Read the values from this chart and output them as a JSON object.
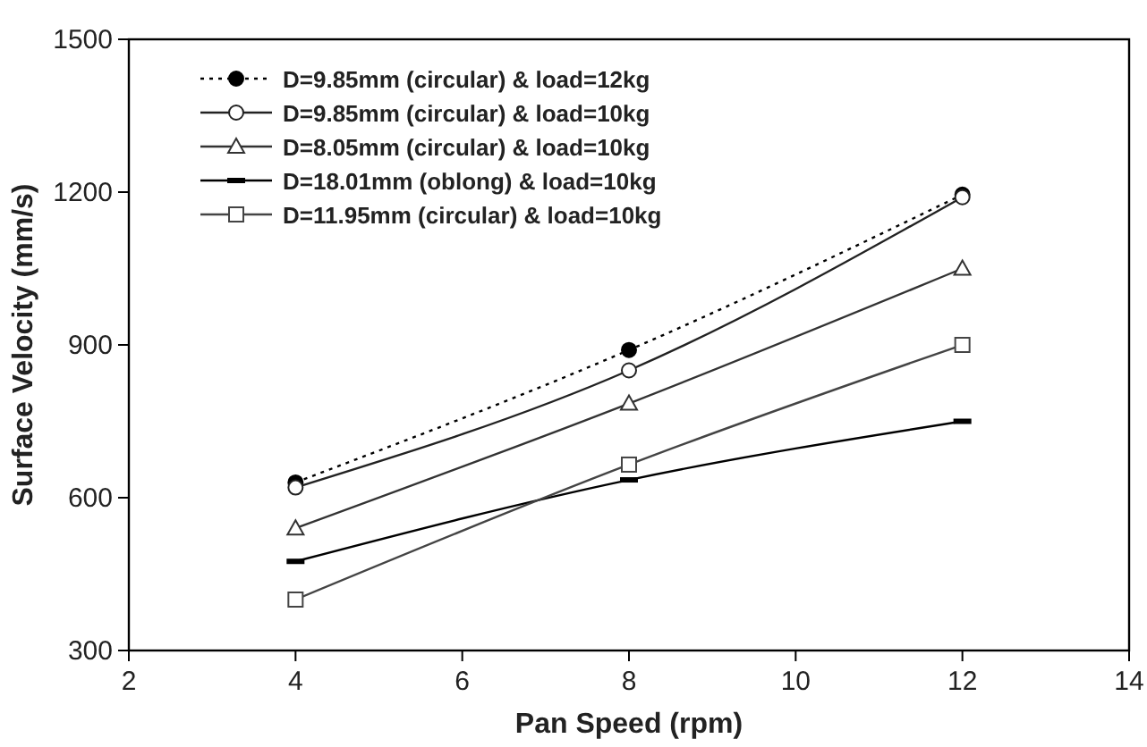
{
  "chart_data": {
    "type": "line",
    "xlabel": "Pan Speed (rpm)",
    "ylabel": "Surface Velocity (mm/s)",
    "x": [
      4,
      8,
      12
    ],
    "xlim": [
      2,
      14
    ],
    "xticks": [
      2,
      4,
      6,
      8,
      10,
      12,
      14
    ],
    "ylim": [
      300,
      1500
    ],
    "yticks": [
      300,
      600,
      900,
      1200,
      1500
    ],
    "grid": false,
    "legend": "top left",
    "series": [
      {
        "name": "D=9.85mm (circular) & load=12kg",
        "color": "#000000",
        "values": [
          630,
          890,
          1195
        ],
        "marker": "circle",
        "line_style": "dotted"
      },
      {
        "name": "D=9.85mm (circular) & load=10kg",
        "color": "#222222",
        "values": [
          620,
          850,
          1190
        ],
        "marker": "circle",
        "line_style": "solid"
      },
      {
        "name": "D=8.05mm (circular) & load=10kg",
        "color": "#333333",
        "values": [
          540,
          785,
          1050
        ],
        "marker": "triangle",
        "line_style": "solid"
      },
      {
        "name": "D=18.01mm (oblong) & load=10kg",
        "color": "#000000",
        "values": [
          475,
          635,
          750
        ],
        "marker": "square",
        "line_style": "solid"
      },
      {
        "name": "D=11.95mm (circular) & load=10kg",
        "color": "#444444",
        "values": [
          400,
          665,
          900
        ],
        "marker": "square",
        "line_style": "solid"
      }
    ]
  }
}
